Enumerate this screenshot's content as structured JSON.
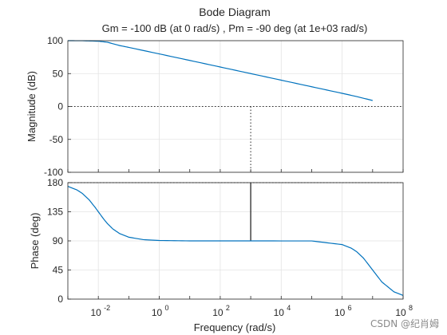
{
  "chart_data": {
    "type": "line",
    "title": "Bode Diagram",
    "subtitle": "Gm = -100 dB (at 0 rad/s) ,  Pm = -90 deg (at 1e+03 rad/s)",
    "xlabel": "Frequency  (rad/s)",
    "xscale": "log",
    "xlim": [
      0.001,
      100000000
    ],
    "x_tick_labels": [
      "10",
      "10",
      "10",
      "10",
      "10",
      "10"
    ],
    "x_tick_exponents": [
      "-2",
      "0",
      "2",
      "4",
      "6",
      "8"
    ],
    "grid": true,
    "line_color": "#0072bd",
    "magnitude": {
      "ylabel": "Magnitude (dB)",
      "ylim": [
        -100,
        100
      ],
      "y_ticks": [
        "100",
        "50",
        "0",
        "-50",
        "-100"
      ],
      "x": [
        0.001,
        0.003,
        0.01,
        0.02,
        0.05,
        0.1,
        1,
        10,
        100,
        1000,
        10000,
        100000,
        1000000,
        3000000,
        10000000
      ],
      "values": [
        100,
        99.9,
        99.2,
        97.6,
        92.6,
        89.8,
        79.9,
        70,
        60,
        50,
        40,
        30,
        20,
        15.1,
        9.1
      ]
    },
    "phase": {
      "ylabel": "Phase (deg)",
      "ylim": [
        0,
        180
      ],
      "y_ticks": [
        "180",
        "135",
        "90",
        "45",
        "0"
      ],
      "x": [
        0.001,
        0.002,
        0.003,
        0.005,
        0.008,
        0.01,
        0.015,
        0.02,
        0.03,
        0.05,
        0.1,
        0.3,
        1,
        10,
        1000,
        100000,
        1000000,
        2000000,
        3000000,
        5000000,
        10000000,
        20000000,
        50000000,
        100000000
      ],
      "values": [
        174.3,
        168.7,
        163.3,
        153.4,
        141.3,
        135,
        123.7,
        116.6,
        108.4,
        101.3,
        95.7,
        91.9,
        90.6,
        90,
        90,
        89.9,
        84.3,
        78.7,
        73.3,
        63.4,
        45,
        26.6,
        11.3,
        5.7
      ]
    },
    "gain_margin_marker": {
      "x": 1000,
      "db": 0
    },
    "phase_margin_marker": {
      "x": 1000,
      "from_deg": 180,
      "to_deg": 90
    }
  },
  "watermark": "CSDN @纪肖姆"
}
